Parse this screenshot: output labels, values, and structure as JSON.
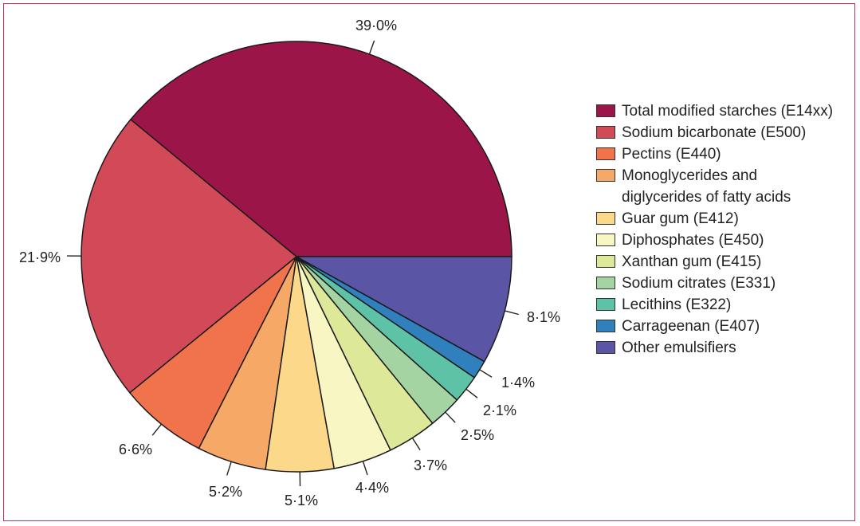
{
  "chart_data": {
    "type": "pie",
    "title": "",
    "slices": [
      {
        "label": "Total modified starches (E14xx)",
        "value": 39.0,
        "display": "39·0%",
        "color": "#9b1548"
      },
      {
        "label": "Sodium bicarbonate (E500)",
        "value": 21.9,
        "display": "21·9%",
        "color": "#d24a58"
      },
      {
        "label": "Pectins (E440)",
        "value": 6.6,
        "display": "6·6%",
        "color": "#f0734c"
      },
      {
        "label": "Monoglycerides and\ndiglycerides of fatty acids",
        "value": 5.2,
        "display": "5·2%",
        "color": "#f6a866"
      },
      {
        "label": "Guar gum (E412)",
        "value": 5.1,
        "display": "5·1%",
        "color": "#fcd98a"
      },
      {
        "label": "Diphosphates (E450)",
        "value": 4.4,
        "display": "4·4%",
        "color": "#f8f6c2"
      },
      {
        "label": "Xanthan gum (E415)",
        "value": 3.7,
        "display": "3·7%",
        "color": "#dde898"
      },
      {
        "label": "Sodium citrates (E331)",
        "value": 2.5,
        "display": "2·5%",
        "color": "#a4d4a2"
      },
      {
        "label": "Lecithins (E322)",
        "value": 2.1,
        "display": "2·1%",
        "color": "#5ec3a6"
      },
      {
        "label": "Carrageenan (E407)",
        "value": 1.4,
        "display": "1·4%",
        "color": "#2f80bd"
      },
      {
        "label": "Other emulsifiers",
        "value": 8.1,
        "display": "8·1%",
        "color": "#5a55a5"
      }
    ],
    "legend_position": "right"
  }
}
